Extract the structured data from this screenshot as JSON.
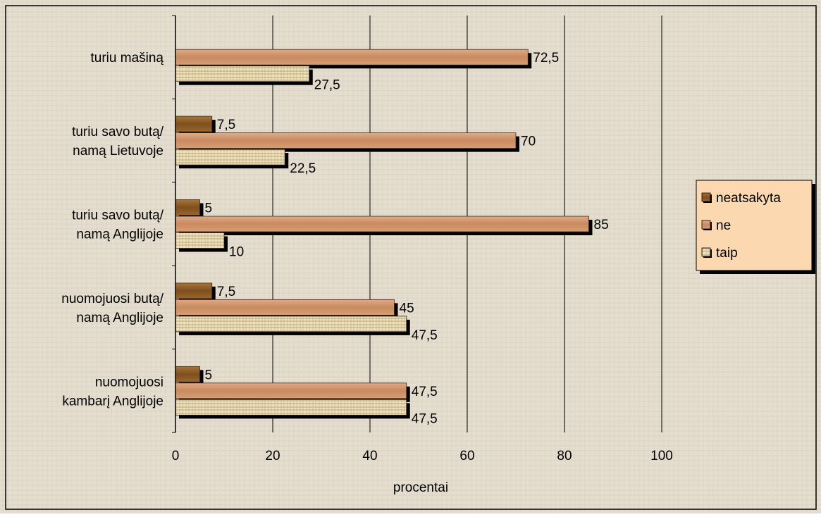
{
  "chart_data": {
    "type": "bar",
    "orientation": "horizontal",
    "categories": [
      [
        "turiu mašiną"
      ],
      [
        "turiu savo butą/",
        "namą Lietuvoje"
      ],
      [
        "turiu savo butą/",
        "namą Anglijoje"
      ],
      [
        "nuomojuosi butą/",
        "namą Anglijoje"
      ],
      [
        "nuomojuosi",
        "kambarį Anglijoje"
      ]
    ],
    "series": [
      {
        "name": "neatsakyta",
        "values": [
          null,
          7.5,
          5,
          7.5,
          5
        ],
        "labels": [
          "",
          "7,5",
          "5",
          "7,5",
          "5"
        ]
      },
      {
        "name": "ne",
        "values": [
          72.5,
          70,
          85,
          45,
          47.5
        ],
        "labels": [
          "72,5",
          "70",
          "85",
          "45",
          "47,5"
        ]
      },
      {
        "name": "taip",
        "values": [
          27.5,
          22.5,
          10,
          47.5,
          47.5
        ],
        "labels": [
          "27,5",
          "22,5",
          "10",
          "47,5",
          "47,5"
        ]
      }
    ],
    "x_ticks": [
      "0",
      "20",
      "40",
      "60",
      "80",
      "100"
    ],
    "xlim": [
      0,
      100
    ],
    "xlabel": "procentai",
    "ylabel": "",
    "title": "",
    "grid": "vertical",
    "legend": {
      "placement": "right",
      "entries": [
        "neatsakyta",
        "ne",
        "taip"
      ]
    },
    "colors": {
      "neatsakyta": "#8a5a22",
      "ne": "#d2966c",
      "taip": "#e9dcb4",
      "background": "#e3dccb",
      "legend_bg": "#fbd8b0"
    }
  }
}
